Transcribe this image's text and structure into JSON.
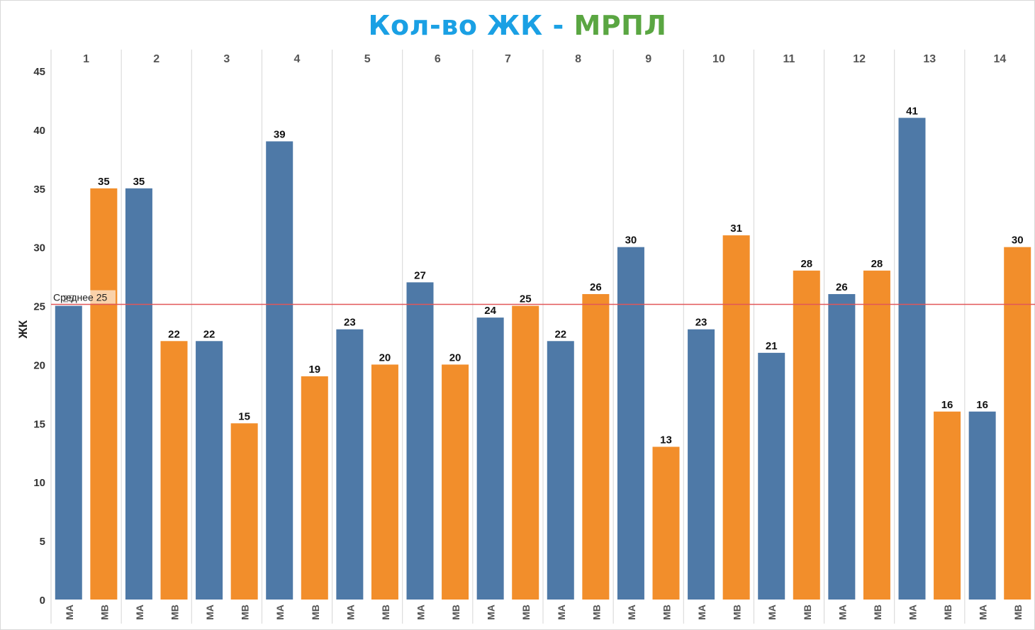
{
  "title": {
    "part1": "Кол-во ЖК",
    "separator": " - ",
    "part2": "МРПЛ"
  },
  "colors": {
    "MA": "#4e79a7",
    "MB": "#f28e2b",
    "reference_line": "#e15759",
    "title_blue": "#1aa0e4",
    "title_green": "#5aa642"
  },
  "chart_data": {
    "type": "bar",
    "ylabel": "ЖК",
    "xlabel": "",
    "ylim": [
      0,
      46
    ],
    "yticks": [
      0,
      5,
      10,
      15,
      20,
      25,
      30,
      35,
      40,
      45
    ],
    "groups": [
      "1",
      "2",
      "3",
      "4",
      "5",
      "6",
      "7",
      "8",
      "9",
      "10",
      "11",
      "12",
      "13",
      "14"
    ],
    "subcategories": [
      "МА",
      "МВ"
    ],
    "series": [
      {
        "name": "МА",
        "values": [
          25,
          35,
          22,
          39,
          23,
          27,
          24,
          22,
          30,
          23,
          21,
          26,
          41,
          16
        ]
      },
      {
        "name": "МВ",
        "values": [
          35,
          22,
          15,
          19,
          20,
          20,
          25,
          26,
          13,
          31,
          28,
          28,
          16,
          30
        ]
      }
    ],
    "reference_line": {
      "label": "Среднее",
      "value": 25
    },
    "grid": false,
    "legend": "none"
  }
}
